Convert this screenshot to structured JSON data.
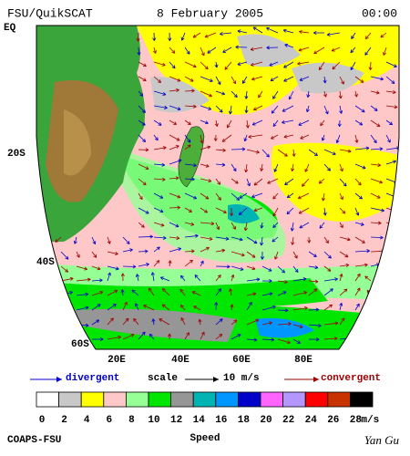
{
  "header": {
    "title": "FSU/QuikSCAT",
    "date": "8 February 2005",
    "time": "00:00"
  },
  "map": {
    "lat_labels": [
      "EQ",
      "20S",
      "40S",
      "60S"
    ],
    "lon_labels": [
      "20E",
      "40E",
      "60E",
      "80E"
    ]
  },
  "legend": {
    "divergent": "divergent",
    "scale": "scale",
    "scale_value": "10 m/s",
    "convergent": "convergent"
  },
  "colorbar": {
    "ticks": [
      0,
      2,
      4,
      6,
      8,
      10,
      12,
      14,
      16,
      18,
      20,
      22,
      24,
      26,
      28
    ],
    "unit": "m/s",
    "colors": [
      "#ffffff",
      "#c8c8c8",
      "#ffff00",
      "#ffc8c8",
      "#96ff96",
      "#00e600",
      "#969696",
      "#00b4b4",
      "#0096ff",
      "#0000c8",
      "#ff64ff",
      "#b496ff",
      "#ff0000",
      "#c83200",
      "#000000"
    ]
  },
  "footer": {
    "left": "COAPS-FSU",
    "center": "Speed",
    "right": "Yan Gu"
  }
}
